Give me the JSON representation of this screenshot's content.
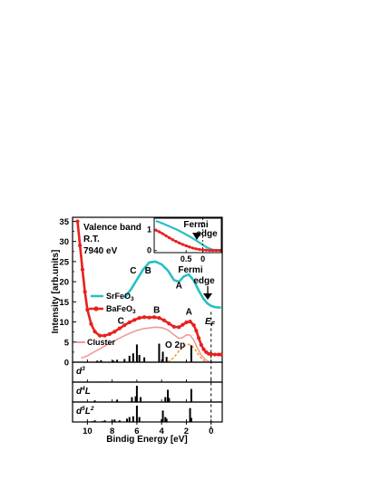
{
  "chart_data": {
    "type": "line",
    "main_panel": {
      "xlabel": "Bindig Energy [eV]",
      "ylabel": "Intensity [arb.units]",
      "x_ticks": [
        10,
        8,
        6,
        4,
        2,
        0
      ],
      "y_ticks": [
        0,
        5,
        10,
        15,
        20,
        25,
        30,
        35
      ],
      "xlim": [
        11.2,
        -0.9
      ],
      "ylim": [
        0,
        36
      ],
      "x_reversed": true,
      "texts": {
        "valence_band": "Valence band",
        "rt": "R.T.",
        "photon_energy": "7940 eV",
        "fermi_line1": "Fermi",
        "fermi_line2": "edge",
        "ef_label": "E",
        "ef_sub": "F",
        "o2p_label": "O 2p"
      },
      "series": [
        {
          "name": "SrFeO3",
          "name_base": "SrFeO",
          "name_sub": "3",
          "color": "#29bfc3",
          "x": [
            7.0,
            6.5,
            6.0,
            5.5,
            5.0,
            4.5,
            4.0,
            3.5,
            3.0,
            2.6,
            2.2,
            1.8,
            1.4,
            1.0,
            0.6,
            0.3,
            0.0,
            -0.3,
            -0.6,
            -0.8
          ],
          "values": [
            16.0,
            18.0,
            20.5,
            23.0,
            24.8,
            25.0,
            24.3,
            22.8,
            20.4,
            20.0,
            21.3,
            21.8,
            20.3,
            17.8,
            15.7,
            14.6,
            14.0,
            13.7,
            13.6,
            13.6
          ]
        },
        {
          "name": "BaFeO3",
          "name_base": "BaFeO",
          "name_sub": "3",
          "color": "#e8201f",
          "x": [
            10.8,
            10.6,
            10.4,
            10.2,
            10.0,
            9.7,
            9.4,
            9.0,
            8.6,
            8.2,
            7.8,
            7.4,
            7.0,
            6.6,
            6.2,
            5.8,
            5.4,
            5.0,
            4.6,
            4.2,
            3.8,
            3.4,
            3.0,
            2.6,
            2.3,
            2.0,
            1.7,
            1.4,
            1.2,
            1.0,
            0.8,
            0.6,
            0.4,
            0.2,
            0.0,
            -0.3,
            -0.6,
            -0.8
          ],
          "values": [
            35.0,
            29.0,
            23.0,
            17.5,
            13.0,
            9.5,
            7.6,
            6.6,
            6.6,
            7.0,
            7.6,
            8.4,
            9.2,
            9.9,
            10.5,
            11.0,
            11.2,
            11.1,
            11.2,
            11.0,
            10.4,
            9.6,
            8.8,
            8.7,
            9.3,
            9.9,
            10.1,
            9.2,
            7.8,
            6.0,
            4.3,
            3.2,
            2.5,
            2.1,
            2.0,
            1.9,
            1.9,
            1.9
          ]
        },
        {
          "name": "Cluster",
          "color": "#ef9a94",
          "x": [
            10.5,
            10.0,
            9.5,
            9.0,
            8.5,
            8.0,
            7.5,
            7.0,
            6.5,
            6.0,
            5.5,
            5.0,
            4.5,
            4.0,
            3.5,
            3.0,
            2.6,
            2.3,
            2.0,
            1.7,
            1.4,
            1.1,
            0.8,
            0.5,
            0.2,
            0.0
          ],
          "values": [
            1.0,
            1.6,
            2.5,
            3.3,
            4.2,
            5.0,
            5.8,
            6.6,
            7.3,
            7.9,
            8.3,
            8.5,
            8.7,
            8.6,
            8.0,
            6.8,
            5.9,
            6.1,
            6.8,
            6.7,
            5.5,
            3.5,
            1.8,
            0.7,
            0.2,
            0.0
          ]
        },
        {
          "name": "O 2p",
          "color": "#f0a030",
          "style": "dashed",
          "x": [
            3.5,
            3.0,
            2.6,
            2.2,
            1.9,
            1.6,
            1.3,
            1.0,
            0.7,
            0.4
          ],
          "values": [
            0.0,
            1.2,
            2.8,
            4.0,
            4.5,
            4.2,
            3.2,
            1.8,
            0.7,
            0.0
          ]
        }
      ],
      "stick_x": [
        9.2,
        8.9,
        7.9,
        7.6,
        7.0,
        6.6,
        6.3,
        6.0,
        5.8,
        5.4,
        4.2,
        3.9,
        3.6,
        1.6
      ],
      "stick_values": [
        0.4,
        0.5,
        0.4,
        0.6,
        0.8,
        1.6,
        2.2,
        4.4,
        1.8,
        1.2,
        4.6,
        2.6,
        1.3,
        4.2
      ],
      "peak_labels": [
        {
          "series": "SrFeO3",
          "label": "C",
          "x": 6.3,
          "y": 22.0
        },
        {
          "series": "SrFeO3",
          "label": "B",
          "x": 5.1,
          "y": 22.0
        },
        {
          "series": "SrFeO3",
          "label": "A",
          "x": 2.6,
          "y": 18.3
        },
        {
          "series": "BaFeO3",
          "label": "C",
          "x": 7.3,
          "y": 9.6
        },
        {
          "series": "BaFeO3",
          "label": "B",
          "x": 4.4,
          "y": 12.3
        },
        {
          "series": "BaFeO3",
          "label": "A",
          "x": 1.8,
          "y": 11.8
        }
      ]
    },
    "inset": {
      "x_ticks_labels": [
        "0.5",
        "0"
      ],
      "x_ticks_values": [
        0.5,
        0.0
      ],
      "y_ticks": [
        0,
        1
      ],
      "xlim": [
        1.45,
        -0.55
      ],
      "ylim": [
        -0.1,
        1.55
      ],
      "series": [
        {
          "name": "SrFeO3",
          "color": "#29bfc3",
          "x": [
            1.4,
            1.3,
            1.2,
            1.1,
            1.0,
            0.9,
            0.8,
            0.7,
            0.6,
            0.5,
            0.4,
            0.3,
            0.2,
            0.1,
            0.0,
            -0.1,
            -0.2,
            -0.3,
            -0.4,
            -0.5
          ],
          "values": [
            1.42,
            1.36,
            1.3,
            1.23,
            1.16,
            1.09,
            1.02,
            0.94,
            0.86,
            0.77,
            0.68,
            0.58,
            0.48,
            0.38,
            0.27,
            0.17,
            0.09,
            0.04,
            0.02,
            0.02
          ]
        },
        {
          "name": "BaFeO3",
          "color": "#e8201f",
          "x": [
            1.4,
            1.3,
            1.2,
            1.1,
            1.0,
            0.9,
            0.8,
            0.7,
            0.6,
            0.5,
            0.4,
            0.3,
            0.2,
            0.1,
            0.0,
            -0.1,
            -0.2,
            -0.3,
            -0.4,
            -0.5
          ],
          "values": [
            0.98,
            0.9,
            0.81,
            0.71,
            0.61,
            0.52,
            0.44,
            0.36,
            0.29,
            0.23,
            0.17,
            0.12,
            0.08,
            0.05,
            0.03,
            0.02,
            0.01,
            0.01,
            0.01,
            0.01
          ]
        }
      ]
    },
    "sub_panels": [
      {
        "label_base": "d",
        "label_sup": "3",
        "label_l": "",
        "label_l_sup": "",
        "stick_x": [],
        "stick_values": []
      },
      {
        "label_base": "d",
        "label_sup": "4",
        "label_l": "L",
        "label_l_sup": "",
        "stick_x": [
          9.4,
          7.6,
          6.4,
          6.1,
          6.0,
          5.7,
          3.7,
          3.5,
          3.4,
          1.6
        ],
        "stick_values": [
          0.1,
          0.15,
          0.3,
          0.35,
          1.0,
          0.3,
          0.3,
          0.75,
          0.25,
          0.8
        ]
      },
      {
        "label_base": "d",
        "label_sup": "5",
        "label_l": "L",
        "label_l_sup": "2",
        "stick_x": [
          9.6,
          9.4,
          8.8,
          8.6,
          8.0,
          7.8,
          7.4,
          6.8,
          6.6,
          6.3,
          6.0,
          5.8,
          4.0,
          3.9,
          3.7,
          3.6,
          1.7,
          1.6
        ],
        "stick_values": [
          0.05,
          0.1,
          0.05,
          0.1,
          0.1,
          0.15,
          0.1,
          0.2,
          0.3,
          0.35,
          1.0,
          0.3,
          0.15,
          0.7,
          0.3,
          0.2,
          0.85,
          0.25
        ]
      }
    ]
  }
}
